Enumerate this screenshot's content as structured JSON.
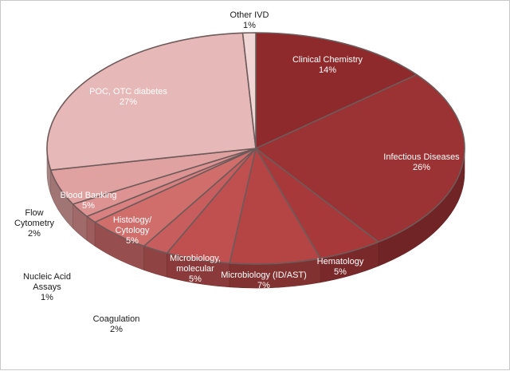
{
  "chart_data": {
    "type": "pie",
    "title": "",
    "colors": {
      "label_inside": "#ffffff",
      "label_outside": "#1a1a1a"
    },
    "slices": [
      {
        "label": "Clinical Chemistry",
        "value": 14,
        "pct": "14%",
        "color": "#8e2a2c",
        "label_place": "inside"
      },
      {
        "label": "Infectious Diseases",
        "value": 26,
        "pct": "26%",
        "color": "#9b3233",
        "label_place": "inside"
      },
      {
        "label": "Hematology",
        "value": 5,
        "pct": "5%",
        "color": "#a8393a",
        "label_place": "inside"
      },
      {
        "label": "Microbiology (ID/AST)",
        "value": 7,
        "pct": "7%",
        "color": "#b54444",
        "label_place": "inside"
      },
      {
        "label": "Microbiology, molecular",
        "value": 5,
        "pct": "5%",
        "color": "#c05050",
        "label_place": "inside"
      },
      {
        "label": "Coagulation",
        "value": 2,
        "pct": "2%",
        "color": "#c85d5d",
        "label_place": "outside"
      },
      {
        "label": "Histology/ Cytology",
        "value": 5,
        "pct": "5%",
        "color": "#d06e6c",
        "label_place": "inside"
      },
      {
        "label": "Nucleic Acid Assays",
        "value": 1,
        "pct": "1%",
        "color": "#d88180",
        "label_place": "outside"
      },
      {
        "label": "Flow Cytometry",
        "value": 2,
        "pct": "2%",
        "color": "#dd9392",
        "label_place": "outside"
      },
      {
        "label": "Blood Banking",
        "value": 5,
        "pct": "5%",
        "color": "#e0a2a1",
        "label_place": "inside"
      },
      {
        "label": "POC, OTC diabetes",
        "value": 27,
        "pct": "27%",
        "color": "#e6b9b8",
        "label_place": "inside"
      },
      {
        "label": "Other IVD",
        "value": 1,
        "pct": "1%",
        "color": "#f0d6d5",
        "label_place": "outside"
      }
    ]
  }
}
